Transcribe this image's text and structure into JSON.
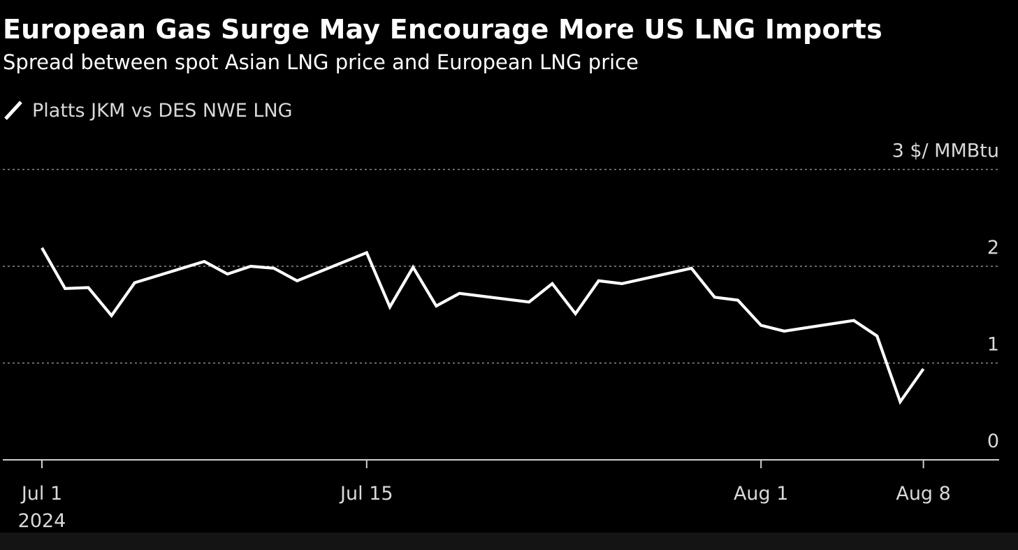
{
  "chart_data": {
    "type": "line",
    "title": "European Gas Surge May Encourage More US LNG Imports",
    "subtitle": "Spread between spot Asian LNG price and European LNG price",
    "unit_label": "3 $/ MMBtu",
    "legend": [
      {
        "name": "Platts JKM vs DES NWE LNG",
        "color": "#ffffff"
      }
    ],
    "x_domain": [
      0,
      39.2
    ],
    "ylim": [
      0,
      3
    ],
    "yticks": [
      0,
      1,
      2,
      3
    ],
    "ytick_labels": [
      "0",
      "1",
      "2",
      "3 $/ MMBtu"
    ],
    "xticks": [
      {
        "day": 1,
        "label": "Jul 1",
        "sublabel": "2024"
      },
      {
        "day": 15,
        "label": "Jul 15",
        "sublabel": ""
      },
      {
        "day": 32,
        "label": "Aug 1",
        "sublabel": ""
      },
      {
        "day": 39,
        "label": "Aug 8",
        "sublabel": ""
      }
    ],
    "series": [
      {
        "name": "Platts JKM vs DES NWE LNG",
        "x": [
          1,
          2,
          3,
          4,
          5,
          8,
          9,
          10,
          11,
          12,
          15,
          16,
          17,
          18,
          19,
          22,
          23,
          24,
          25,
          26,
          29,
          30,
          31,
          32,
          33,
          36,
          37,
          38,
          39
        ],
        "values": [
          2.19,
          1.77,
          1.78,
          1.49,
          1.83,
          2.05,
          1.92,
          2.0,
          1.98,
          1.85,
          2.14,
          1.58,
          1.99,
          1.59,
          1.72,
          1.63,
          1.82,
          1.51,
          1.85,
          1.82,
          1.98,
          1.68,
          1.65,
          1.39,
          1.33,
          1.44,
          1.28,
          0.6,
          0.94
        ]
      }
    ]
  },
  "colors": {
    "background": "#000000",
    "line": "#ffffff",
    "grid": "#8c8c8c",
    "axis": "#d0d0d0",
    "text": "#ffffff",
    "muted_text": "#d9d9d9"
  }
}
